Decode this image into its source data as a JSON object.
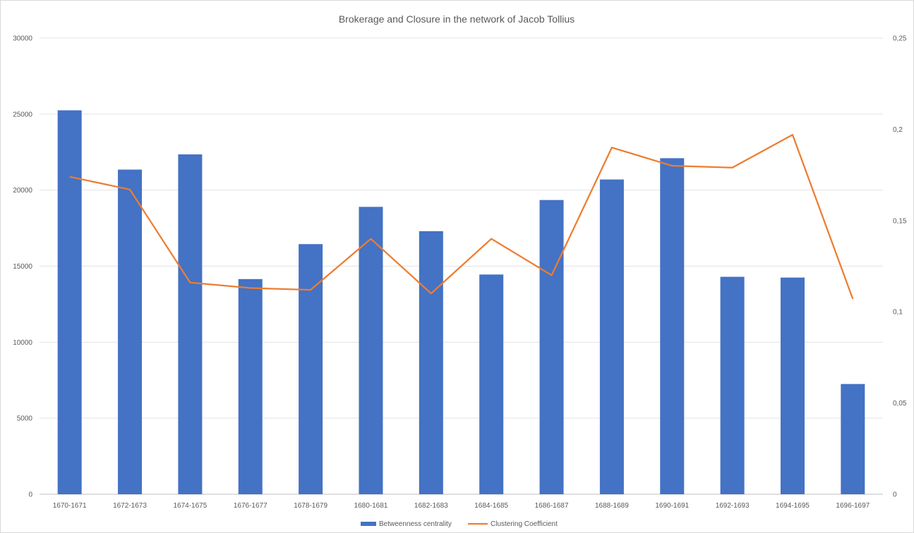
{
  "chart_data": {
    "type": "bar",
    "title": "Brokerage and Closure in the network of Jacob Tollius",
    "categories": [
      "1670-1671",
      "1672-1673",
      "1674-1675",
      "1676-1677",
      "1678-1679",
      "1680-1681",
      "1682-1683",
      "1684-1685",
      "1686-1687",
      "1688-1689",
      "1690-1691",
      "1692-1693",
      "1694-1695",
      "1696-1697"
    ],
    "series": [
      {
        "name": "Betweenness centrality",
        "type": "bar",
        "axis": "left",
        "color": "#4472c4",
        "values": [
          25250,
          21350,
          22350,
          14150,
          16450,
          18900,
          17300,
          14450,
          19350,
          20700,
          22100,
          14300,
          14250,
          7250
        ]
      },
      {
        "name": "Clustering Coefficient",
        "type": "line",
        "axis": "right",
        "color": "#ed7d31",
        "values": [
          0.174,
          0.167,
          0.116,
          0.113,
          0.112,
          0.14,
          0.11,
          0.14,
          0.12,
          0.19,
          0.18,
          0.179,
          0.197,
          0.107
        ]
      }
    ],
    "y_left": {
      "min": 0,
      "max": 30000,
      "ticks": [
        "0",
        "5000",
        "10000",
        "15000",
        "20000",
        "25000",
        "30000"
      ]
    },
    "y_right": {
      "min": 0,
      "max": 0.25,
      "ticks": [
        "0",
        "0,05",
        "0,1",
        "0,15",
        "0,2",
        "0,25"
      ]
    },
    "grid": true,
    "legend_position": "bottom"
  }
}
